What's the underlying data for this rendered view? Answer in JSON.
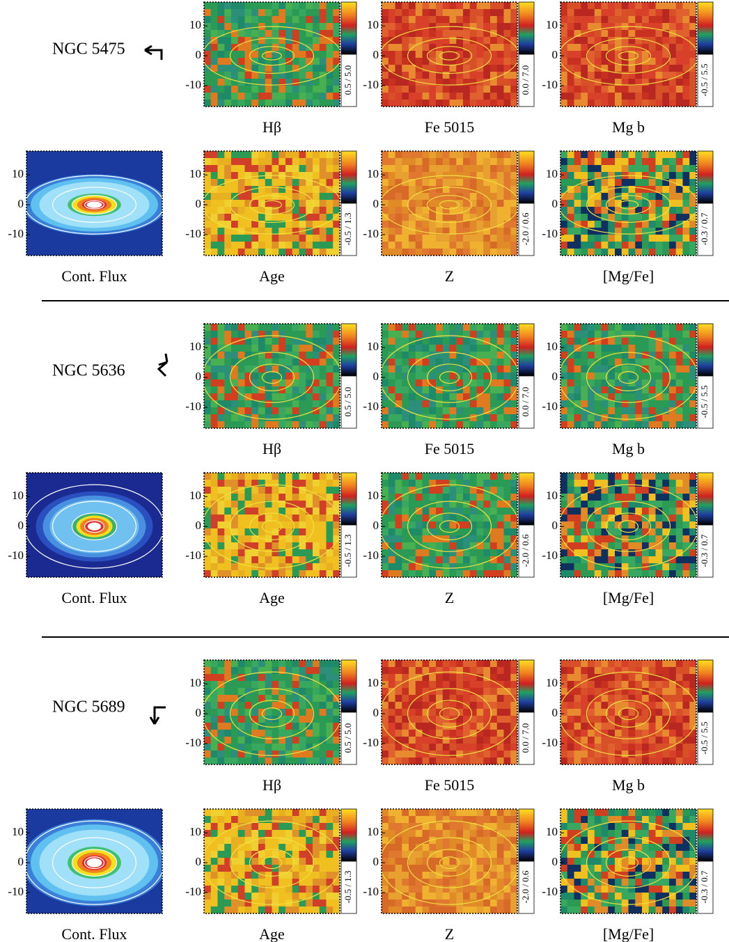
{
  "ylim": [
    -17,
    18
  ],
  "yticks": [
    10,
    0,
    -10
  ],
  "galaxies": [
    {
      "name": "NGC 5475",
      "rows": [
        [
          {
            "label": "Hβ",
            "scale": "0.5 / 5.0"
          },
          {
            "label": "Fe 5015",
            "scale": "0.0 / 7.0"
          },
          {
            "label": "Mg b",
            "scale": "-0.5 / 5.5"
          }
        ],
        [
          {
            "label": "Cont. Flux"
          },
          {
            "label": "Age",
            "scale": "-0.5 / 1.3"
          },
          {
            "label": "Z",
            "scale": "-2.0 / 0.6"
          },
          {
            "label": "[Mg/Fe]",
            "scale": "-0.3 / 0.7"
          }
        ]
      ]
    },
    {
      "name": "NGC 5636",
      "rows": [
        [
          {
            "label": "Hβ",
            "scale": "0.5 / 5.0"
          },
          {
            "label": "Fe 5015",
            "scale": "0.0 / 7.0"
          },
          {
            "label": "Mg b",
            "scale": "-0.5 / 5.5"
          }
        ],
        [
          {
            "label": "Cont. Flux"
          },
          {
            "label": "Age",
            "scale": "-0.5 / 1.3"
          },
          {
            "label": "Z",
            "scale": "-2.0 / 0.6"
          },
          {
            "label": "[Mg/Fe]",
            "scale": "-0.3 / 0.7"
          }
        ]
      ]
    },
    {
      "name": "NGC 5689",
      "rows": [
        [
          {
            "label": "Hβ",
            "scale": "0.5 / 5.0"
          },
          {
            "label": "Fe 5015",
            "scale": "0.0 / 7.0"
          },
          {
            "label": "Mg b",
            "scale": "-0.5 / 5.5"
          }
        ],
        [
          {
            "label": "Cont. Flux"
          },
          {
            "label": "Age",
            "scale": "-0.5 / 1.3"
          },
          {
            "label": "Z",
            "scale": "-2.0 / 0.6"
          },
          {
            "label": "[Mg/Fe]",
            "scale": "-0.3 / 0.7"
          }
        ]
      ]
    }
  ]
}
